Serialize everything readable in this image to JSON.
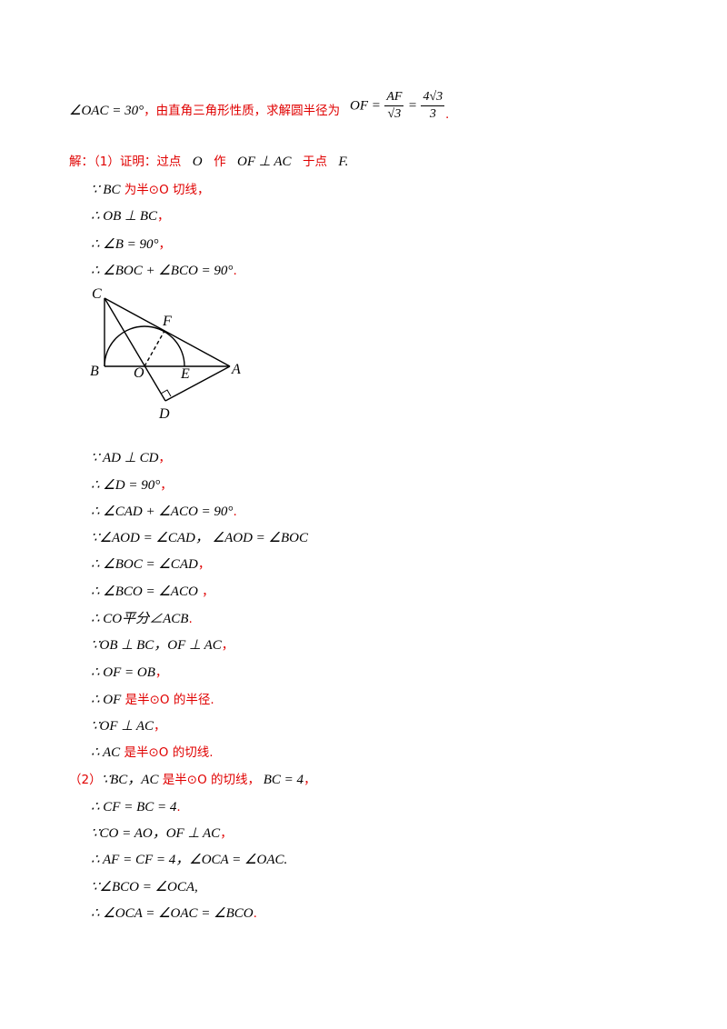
{
  "intro": {
    "angle": "∠OAC = 30°",
    "sep": "，",
    "text": "由直角三角形性质，求解圆半径为",
    "of_eq": "OF =",
    "frac1_num": "AF",
    "frac1_den": "√3",
    "eq2": "=",
    "frac2_num": "4√3",
    "frac2_den": "3",
    "end": "."
  },
  "part1": {
    "lead": "解：（1）证明：过点",
    "o": "O",
    "zuo": "作",
    "perp": "OF ⊥ AC",
    "yudian": "于点",
    "f": "F",
    "dot": "."
  },
  "steps_a": [
    {
      "math": "∵ BC",
      "red": " 为半⊙O 切线，"
    },
    {
      "math": "∴ OB ⊥ BC",
      "red": "，"
    },
    {
      "math": "∴ ∠B = 90°",
      "red": "，"
    },
    {
      "math": "∴ ∠BOC + ∠BCO = 90°",
      "red": "."
    }
  ],
  "figure": {
    "labels": {
      "C": "C",
      "F": "F",
      "B": "B",
      "O": "O",
      "E": "E",
      "A": "A",
      "D": "D"
    }
  },
  "steps_b": [
    {
      "math": "∵ AD ⊥ CD",
      "red": "，"
    },
    {
      "math": "∴ ∠D = 90°",
      "red": "，"
    },
    {
      "math": "∴ ∠CAD + ∠ACO = 90°",
      "red": "."
    },
    {
      "math": "∵∠AOD = ∠CAD，  ∠AOD = ∠BOC",
      "red": ""
    },
    {
      "math": "∴ ∠BOC = ∠CAD",
      "red": "，"
    },
    {
      "math": "∴ ∠BCO = ∠ACO",
      "red": "  ，"
    },
    {
      "math": "∴ CO平分∠ACB",
      "red": "."
    },
    {
      "math": "∵OB ⊥ BC，OF ⊥ AC",
      "red": "，"
    },
    {
      "math": "∴ OF = OB",
      "red": "，"
    },
    {
      "math": "∴ OF",
      "red": "  是半⊙O  的半径."
    },
    {
      "math": " ∵OF ⊥ AC",
      "red": "，"
    },
    {
      "math": "∴ AC",
      "red": "  是半⊙O 的切线."
    }
  ],
  "part2": {
    "lead": "（2）",
    "math1": "∵BC，AC",
    "red1": "  是半⊙O 的切线，",
    "math2": "   BC = 4",
    "red2": "，"
  },
  "steps_c": [
    {
      "math": "∴ CF = BC = 4",
      "red": "."
    },
    {
      "math": "∵CO = AO，OF ⊥ AC",
      "red": "，"
    },
    {
      "math": "∴ AF = CF = 4，∠OCA = ∠OAC.",
      "red": ""
    },
    {
      "math": "∵∠BCO = ∠OCA,",
      "red": ""
    },
    {
      "math": "∴ ∠OCA = ∠OAC = ∠BCO",
      "red": "."
    }
  ]
}
